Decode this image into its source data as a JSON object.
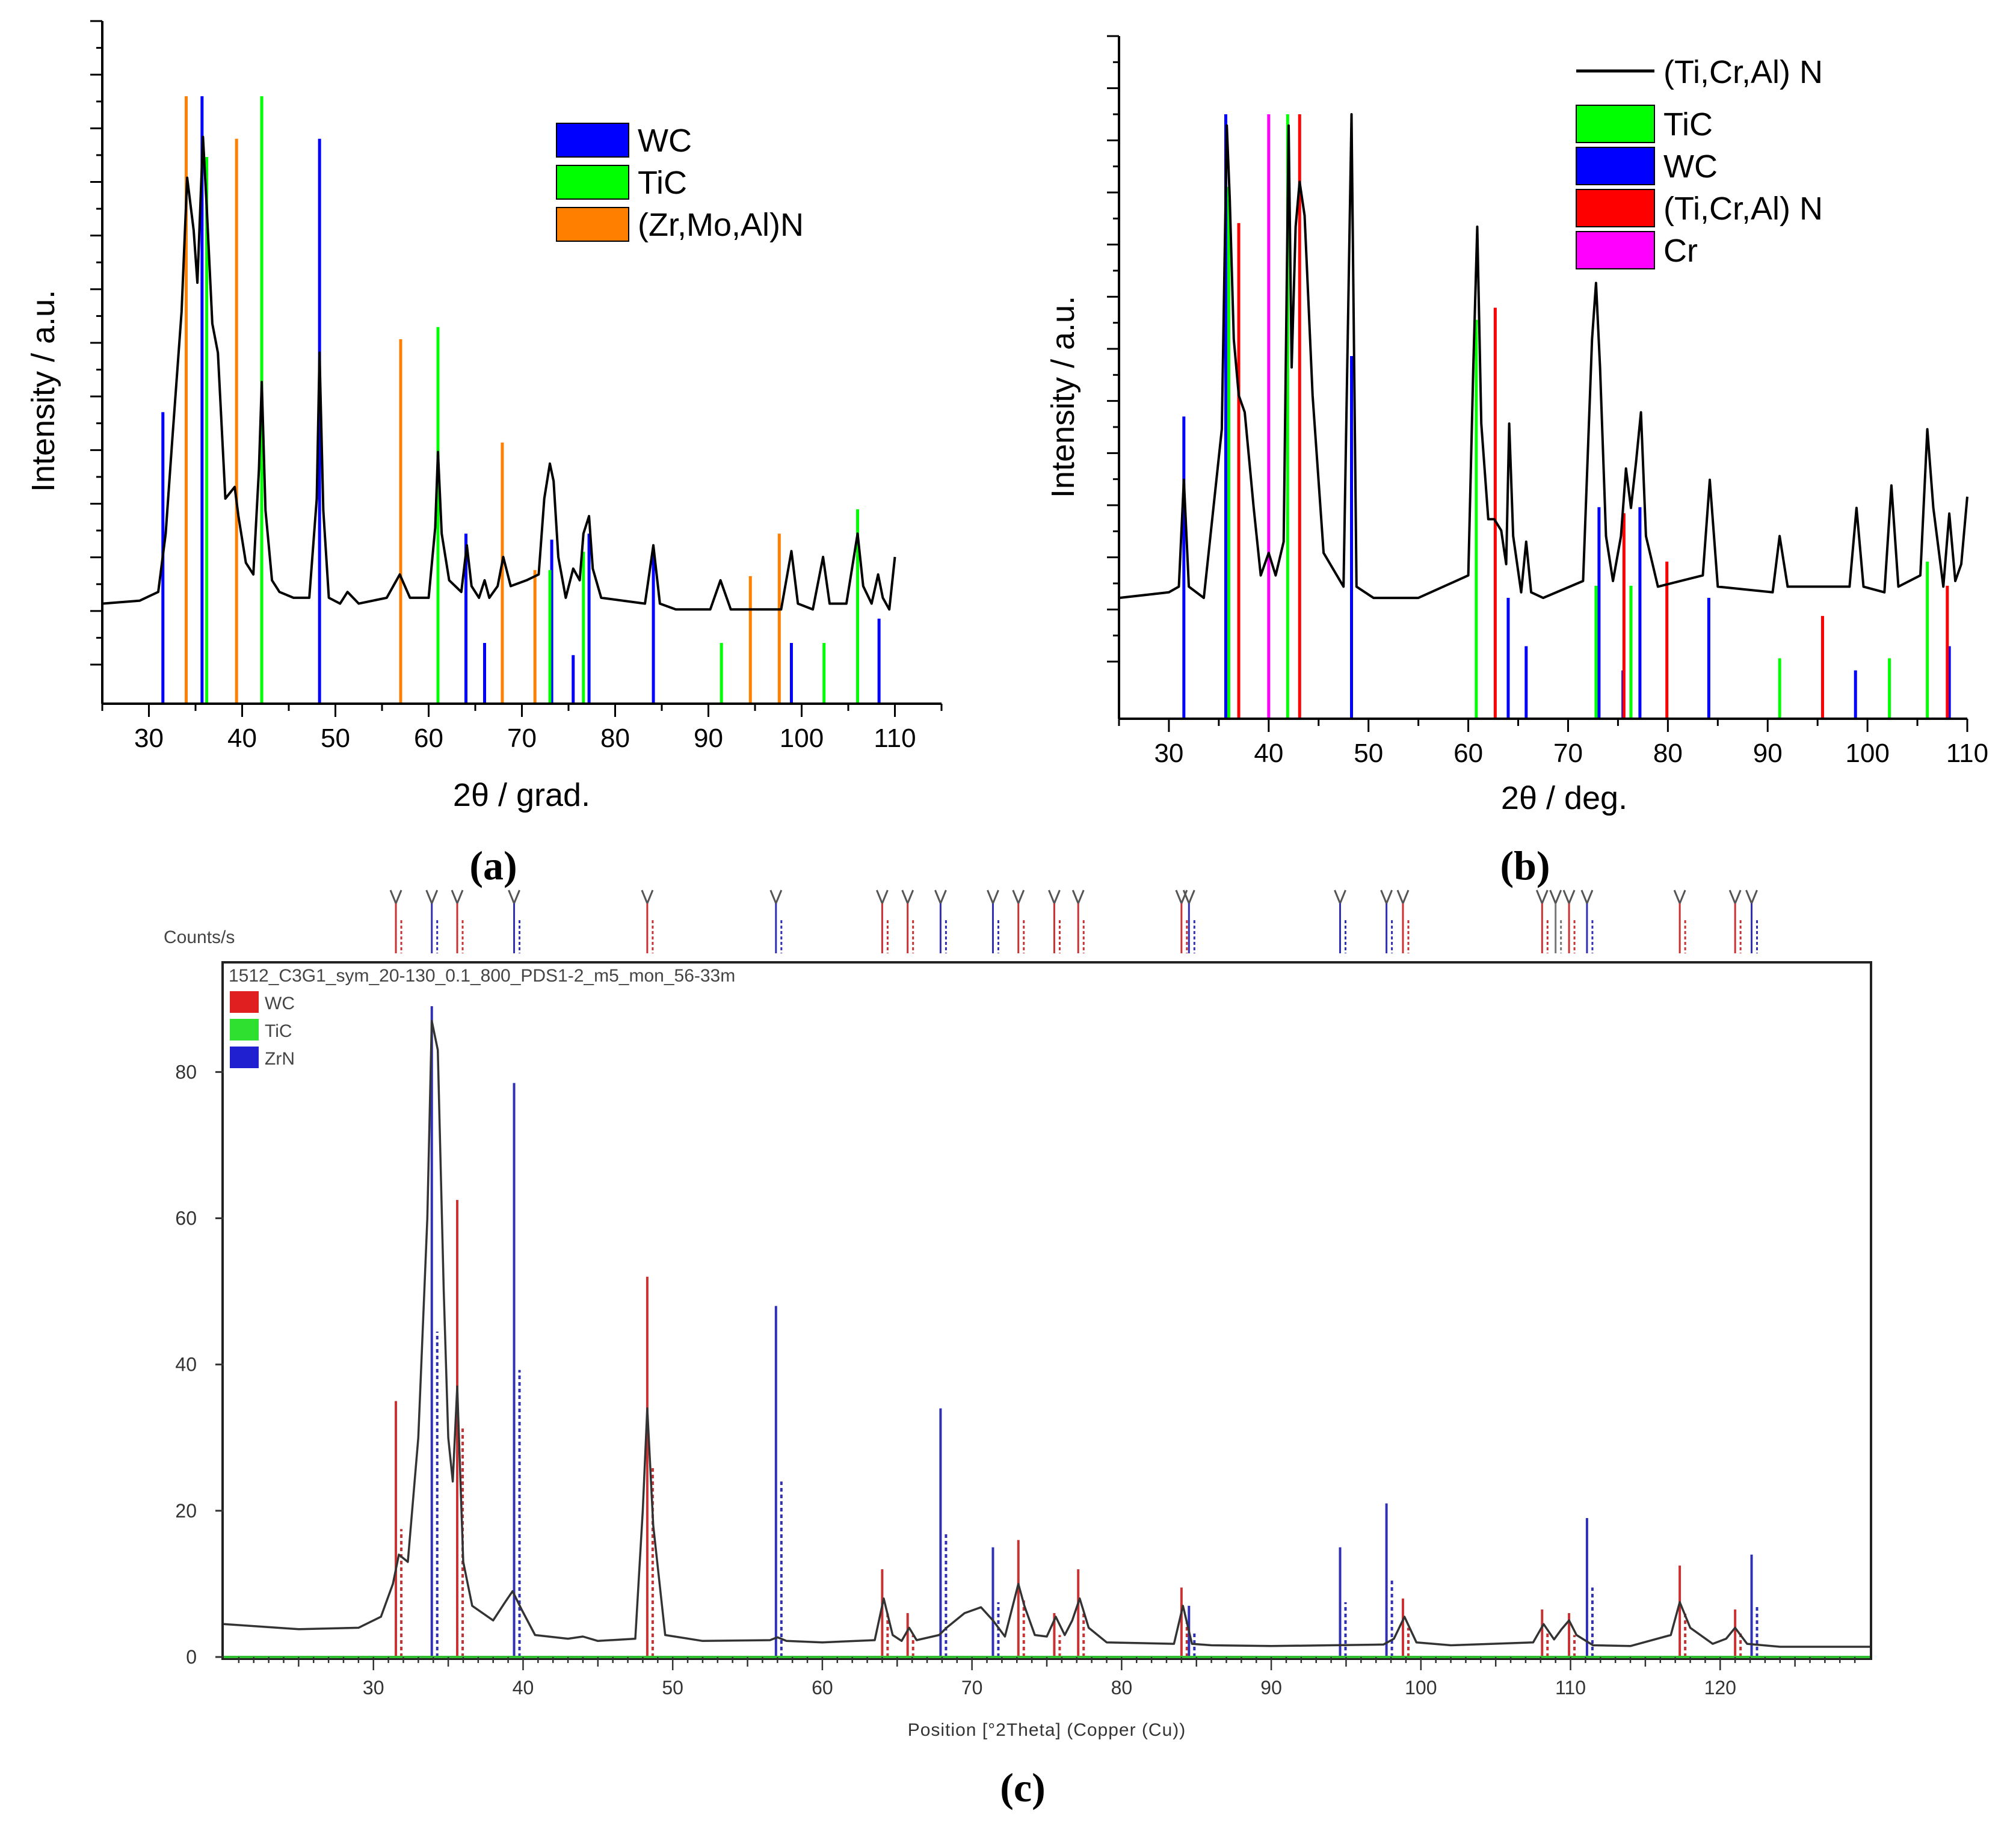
{
  "chart_data": [
    {
      "id": "a",
      "type": "line",
      "panel_label": "(a)",
      "xlabel": "2θ / grad.",
      "ylabel": "Intensity / a.u.",
      "xlim": [
        25,
        115
      ],
      "ylim": [
        0,
        100
      ],
      "xticks": [
        30,
        40,
        50,
        60,
        70,
        80,
        90,
        100,
        110
      ],
      "legend": {
        "position": "top-right",
        "entries": [
          {
            "name": "WC",
            "color": "#0000ff"
          },
          {
            "name": "TiC",
            "color": "#00ff00"
          },
          {
            "name": "(Zr,Mo,Al)N",
            "color": "#ff7f00"
          }
        ]
      },
      "reference_lines": [
        {
          "phase": "WC",
          "color": "#0000ff",
          "x": [
            31.5,
            35.7,
            48.3,
            64.0,
            66.0,
            73.2,
            75.5,
            77.2,
            84.1,
            98.9,
            108.3
          ],
          "height": [
            48,
            100,
            93,
            28,
            10,
            27,
            8,
            28,
            25,
            10,
            14
          ]
        },
        {
          "phase": "TiC",
          "color": "#00ff00",
          "x": [
            36.2,
            42.1,
            61.0,
            73.0,
            76.6,
            91.4,
            102.4,
            106.0
          ],
          "height": [
            90,
            100,
            62,
            22,
            25,
            10,
            10,
            32
          ]
        },
        {
          "phase": "(Zr,Mo,Al)N",
          "color": "#ff7f00",
          "x": [
            34.0,
            39.4,
            57.0,
            67.9,
            71.4,
            94.5,
            97.6
          ],
          "height": [
            100,
            93,
            60,
            43,
            22,
            21,
            28
          ]
        }
      ],
      "series": [
        {
          "name": "measured pattern",
          "color": "#000000",
          "x": [
            25,
            29,
            31,
            31.8,
            32.5,
            33.5,
            34.1,
            34.8,
            35.2,
            35.8,
            36.2,
            36.8,
            37.4,
            38.2,
            39.2,
            39.6,
            40.4,
            41.2,
            41.8,
            42.1,
            42.5,
            43.2,
            44.0,
            45.5,
            47.2,
            48.0,
            48.3,
            48.7,
            49.3,
            50.5,
            51.3,
            52.5,
            55.5,
            56.9,
            58.0,
            60.0,
            60.7,
            61.0,
            61.4,
            62.2,
            63.5,
            64.1,
            64.6,
            65.4,
            66.0,
            66.5,
            67.4,
            68.0,
            68.8,
            70.5,
            71.8,
            72.4,
            73.0,
            73.4,
            73.9,
            74.7,
            75.5,
            76.2,
            76.6,
            77.2,
            77.6,
            78.5,
            83.2,
            84.1,
            84.8,
            86.5,
            90.2,
            91.3,
            92.4,
            94.0,
            97.8,
            98.9,
            99.6,
            101.2,
            102.3,
            103.0,
            104.8,
            106.0,
            106.6,
            107.5,
            108.2,
            108.7,
            109.4,
            110.0
          ],
          "y": [
            12,
            12.5,
            14,
            24,
            40,
            62,
            85,
            76,
            67,
            92,
            80,
            60,
            55,
            30,
            32,
            27,
            19,
            17,
            35,
            50,
            28,
            16,
            14,
            13,
            13,
            30,
            55,
            28,
            13,
            12,
            14,
            12,
            13,
            17,
            13,
            13,
            25,
            38,
            24,
            16,
            14,
            22,
            15,
            13,
            16,
            13,
            15,
            20,
            15,
            16,
            17,
            30,
            36,
            33,
            20,
            13,
            18,
            16,
            24,
            27,
            18,
            13,
            12,
            22,
            12,
            11,
            11,
            16,
            11,
            11,
            11,
            21,
            12,
            11,
            20,
            12,
            12,
            24,
            15,
            12,
            17,
            13,
            11,
            20
          ]
        }
      ]
    },
    {
      "id": "b",
      "type": "line",
      "panel_label": "(b)",
      "xlabel": "2θ /  deg.",
      "ylabel": "Intensity / a.u.",
      "xlim": [
        25,
        110
      ],
      "ylim": [
        0,
        100
      ],
      "xticks": [
        30,
        40,
        50,
        60,
        70,
        80,
        90,
        100,
        110
      ],
      "legend": {
        "position": "top-right",
        "entries": [
          {
            "name": "(Ti,Cr,Al) N",
            "color": "#000000",
            "style": "line"
          },
          {
            "name": "TiC",
            "color": "#00ff00"
          },
          {
            "name": "WC",
            "color": "#0000ff"
          },
          {
            "name": "(Ti,Cr,Al) N",
            "color": "#ff0000"
          },
          {
            "name": "Cr",
            "color": "#ff00ff"
          }
        ]
      },
      "reference_lines": [
        {
          "phase": "WC",
          "color": "#0000ff",
          "x": [
            31.5,
            35.7,
            48.3,
            64.0,
            65.8,
            73.1,
            75.5,
            77.2,
            84.1,
            98.8,
            108.2
          ],
          "height": [
            50,
            100,
            60,
            20,
            12,
            35,
            8,
            35,
            20,
            8,
            12
          ]
        },
        {
          "phase": "TiC",
          "color": "#00ff00",
          "x": [
            36.0,
            41.9,
            60.8,
            72.8,
            76.3,
            91.2,
            102.2,
            106.0
          ],
          "height": [
            88,
            100,
            66,
            22,
            22,
            10,
            10,
            26
          ]
        },
        {
          "phase": "(Ti,Cr,Al) N",
          "color": "#ff0000",
          "x": [
            37.0,
            43.1,
            62.7,
            75.6,
            79.9,
            95.5,
            108.0
          ],
          "height": [
            82,
            100,
            68,
            34,
            26,
            17,
            22
          ]
        },
        {
          "phase": "Cr",
          "color": "#ff00ff",
          "x": [
            40.0
          ],
          "height": [
            100
          ]
        }
      ],
      "series": [
        {
          "name": "(Ti,Cr,Al) N",
          "color": "#000000",
          "x": [
            25,
            30,
            31.0,
            31.5,
            32.0,
            33.5,
            35.3,
            35.8,
            36.1,
            36.5,
            37.0,
            37.6,
            38.5,
            39.2,
            40.0,
            40.7,
            41.5,
            42.0,
            42.3,
            42.7,
            43.1,
            43.6,
            44.4,
            45.5,
            47.5,
            48.3,
            48.8,
            50.5,
            55,
            60.0,
            60.5,
            60.9,
            61.3,
            62.0,
            62.6,
            63.3,
            63.8,
            64.1,
            64.5,
            65.3,
            65.8,
            66.3,
            67.5,
            71.5,
            72.4,
            72.8,
            73.2,
            73.8,
            74.5,
            75.3,
            75.8,
            76.3,
            76.8,
            77.3,
            77.8,
            79,
            83.5,
            84.2,
            85.0,
            90.5,
            91.2,
            92.0,
            98.2,
            98.9,
            99.6,
            101.7,
            102.4,
            103.1,
            105.3,
            106.0,
            106.6,
            107.6,
            108.2,
            108.8,
            109.4,
            110.0
          ],
          "y": [
            14,
            15,
            16,
            35,
            16,
            14,
            44,
            98,
            85,
            60,
            50,
            47,
            30,
            18,
            22,
            18,
            24,
            98,
            55,
            80,
            88,
            82,
            50,
            22,
            16,
            100,
            16,
            14,
            14,
            18,
            55,
            80,
            45,
            28,
            28,
            26,
            20,
            45,
            25,
            15,
            24,
            15,
            14,
            17,
            60,
            70,
            55,
            25,
            17,
            25,
            37,
            30,
            38,
            47,
            25,
            16,
            18,
            35,
            16,
            15,
            25,
            16,
            16,
            30,
            16,
            15,
            34,
            16,
            18,
            44,
            30,
            16,
            29,
            17,
            20,
            32
          ]
        }
      ]
    },
    {
      "id": "c",
      "type": "line",
      "panel_label": "(c)",
      "title": "1512_C3G1_sym_20-130_0.1_800_PDS1-2_m5_mon_56-33m",
      "xlabel": "Position [°2Theta] (Copper (Cu))",
      "ylabel": "Counts/s",
      "xlim": [
        20,
        130
      ],
      "ylim": [
        0,
        95
      ],
      "xticks": [
        30,
        40,
        50,
        60,
        70,
        80,
        90,
        100,
        110,
        120
      ],
      "yticks": [
        0,
        20,
        40,
        60,
        80
      ],
      "legend": {
        "position": "top-left",
        "entries": [
          {
            "name": "WC",
            "color": "#e02020"
          },
          {
            "name": "TiC",
            "color": "#30e030"
          },
          {
            "name": "ZrN",
            "color": "#2020d0"
          }
        ]
      },
      "reference_lines": [
        {
          "phase": "WC",
          "color": "#c83232",
          "x": [
            31.5,
            35.6,
            48.3,
            64.0,
            65.7,
            73.1,
            75.5,
            77.1,
            84.0,
            98.8,
            108.1,
            109.9,
            117.3,
            121.0
          ],
          "height": [
            35,
            62.5,
            52,
            12,
            6,
            16,
            6,
            12,
            9.5,
            8,
            6.5,
            6,
            12.5,
            6.5
          ]
        },
        {
          "phase": "ZrN",
          "color": "#3030b4",
          "x": [
            33.9,
            39.4,
            56.9,
            67.9,
            71.4,
            84.5,
            94.6,
            97.7,
            111.1,
            122.1
          ],
          "height": [
            89,
            78.5,
            48,
            34,
            15,
            7,
            15,
            21,
            19,
            14
          ]
        }
      ],
      "peak_markers": [
        31.5,
        33.9,
        35.6,
        39.4,
        48.3,
        56.9,
        64.0,
        65.7,
        67.9,
        71.4,
        73.1,
        75.5,
        77.1,
        84.0,
        84.5,
        94.6,
        97.7,
        98.8,
        108.1,
        109.0,
        109.9,
        111.1,
        117.3,
        121.0,
        122.1
      ],
      "series": [
        {
          "name": "measured pattern",
          "color": "#333333",
          "x": [
            20,
            25,
            29,
            30.5,
            31.3,
            31.7,
            32.3,
            33.0,
            33.6,
            33.9,
            34.3,
            34.7,
            35.0,
            35.3,
            35.6,
            36.0,
            36.6,
            38.0,
            38.8,
            39.3,
            39.9,
            40.8,
            43.0,
            44.0,
            45,
            47.5,
            48.0,
            48.3,
            48.7,
            49.5,
            52,
            56.5,
            57.0,
            57.6,
            60,
            63.5,
            64.1,
            64.7,
            65.3,
            65.8,
            66.3,
            67.8,
            68.3,
            69.5,
            70.6,
            71.4,
            72.2,
            72.6,
            73.1,
            73.5,
            74.2,
            75.0,
            75.6,
            76.2,
            76.7,
            77.2,
            77.8,
            79,
            83.5,
            84.1,
            84.7,
            86,
            90,
            94,
            97.5,
            98.2,
            98.9,
            99.7,
            102,
            107.5,
            108.2,
            108.9,
            109.4,
            109.9,
            110.4,
            111.5,
            114,
            116.7,
            117.3,
            118.0,
            119.5,
            120.4,
            121.0,
            121.8,
            124,
            127,
            130
          ],
          "y": [
            4.5,
            3.8,
            4,
            5.5,
            10,
            14,
            13,
            30,
            60,
            87,
            83,
            50,
            30,
            24,
            37,
            13,
            7,
            5,
            7.5,
            9,
            6.5,
            3,
            2.5,
            2.8,
            2.2,
            2.5,
            20,
            34,
            18,
            3,
            2.2,
            2.3,
            2.7,
            2.2,
            2,
            2.3,
            8,
            3,
            2.2,
            4,
            2.3,
            3,
            4,
            6,
            6.8,
            5,
            2.8,
            6,
            10,
            7,
            3,
            2.8,
            5.5,
            3,
            5,
            8,
            4,
            2,
            1.8,
            7,
            1.8,
            1.6,
            1.5,
            1.6,
            1.7,
            2.5,
            5.5,
            2,
            1.6,
            2,
            4.5,
            2.4,
            3.8,
            5,
            3,
            1.6,
            1.5,
            3,
            7.5,
            4,
            1.8,
            2.5,
            4,
            1.8,
            1.4,
            1.4,
            1.4
          ]
        }
      ]
    }
  ]
}
